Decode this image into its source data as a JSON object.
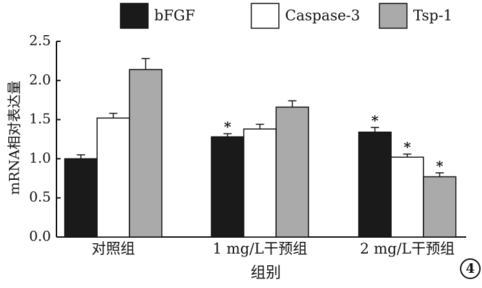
{
  "chart_data": {
    "type": "bar",
    "title": "",
    "xlabel": "组别",
    "ylabel": "mRNA相对表达量",
    "categories": [
      "对照组",
      "1 mg/L干预组",
      "2 mg/L干预组"
    ],
    "ylim": [
      0,
      2.5
    ],
    "yticks": [
      "0.0",
      "0.5",
      "1.0",
      "1.5",
      "2.0",
      "2.5"
    ],
    "grid": false,
    "legend_position": "top",
    "series": [
      {
        "name": "bFGF",
        "color": "#1a1a1a",
        "values": [
          1.0,
          1.28,
          1.34
        ],
        "errors": [
          0.05,
          0.04,
          0.06
        ],
        "significance": [
          "",
          "*",
          "*"
        ]
      },
      {
        "name": "Caspase-3",
        "color": "#ffffff",
        "values": [
          1.52,
          1.38,
          1.02
        ],
        "errors": [
          0.06,
          0.06,
          0.04
        ],
        "significance": [
          "",
          "",
          "*"
        ]
      },
      {
        "name": "Tsp-1",
        "color": "#aaaaaa",
        "values": [
          2.14,
          1.66,
          0.77
        ],
        "errors": [
          0.14,
          0.08,
          0.05
        ],
        "significance": [
          "",
          "",
          "*"
        ]
      }
    ],
    "panel_label": "4"
  }
}
